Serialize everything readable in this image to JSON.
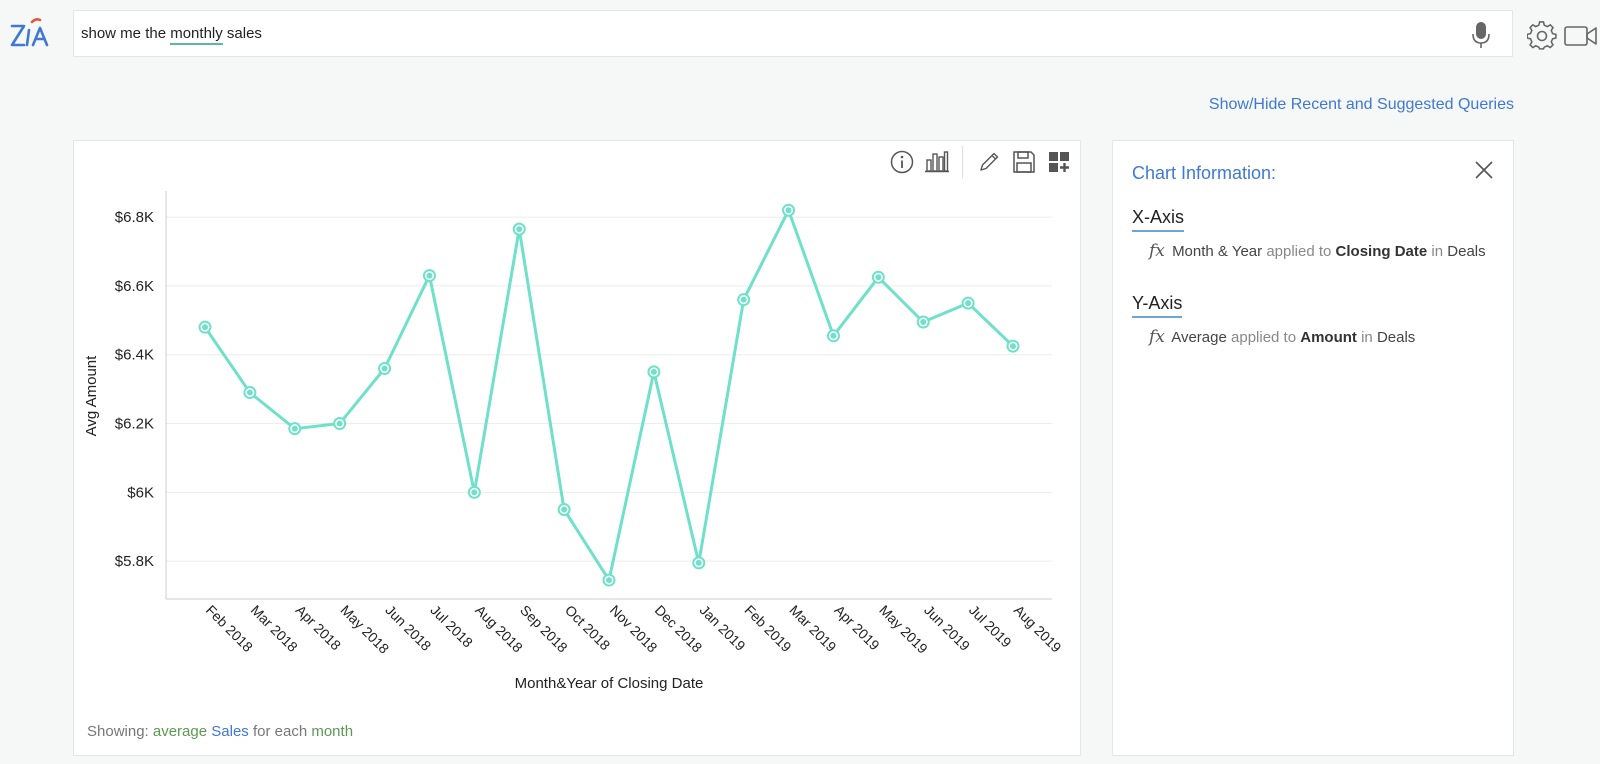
{
  "search": {
    "before": "show me the ",
    "highlight": "monthly",
    "after": " sales"
  },
  "links": {
    "toggle_queries": "Show/Hide Recent and Suggested Queries"
  },
  "icons": {
    "logo": "zia-logo",
    "mic": "microphone-icon",
    "settings": "gear-icon",
    "video": "video-camera-icon",
    "toolbar": [
      "info-icon",
      "bar-chart-icon",
      "pencil-icon",
      "save-icon",
      "add-widget-icon"
    ],
    "close": "close-icon"
  },
  "footer": {
    "prefix": "Showing: ",
    "w1": "average",
    "w2": "Sales",
    "w3": "for each",
    "w4": "month"
  },
  "info": {
    "title": "Chart Information:",
    "x_heading": "X-Axis",
    "x_fx": "fx",
    "x_part1": "Month & Year",
    "x_part2": "applied to",
    "x_part3": "Closing Date",
    "x_part4": "in",
    "x_part5": "Deals",
    "y_heading": "Y-Axis",
    "y_fx": "fx",
    "y_part1": "Average",
    "y_part2": "applied to",
    "y_part3": "Amount",
    "y_part4": "in",
    "y_part5": "Deals"
  },
  "colors": {
    "line": "#6fe0c9",
    "accent_blue": "#3f79d3",
    "accent_green": "#5b9a52",
    "grid": "#ececec"
  },
  "chart_data": {
    "type": "line",
    "categories": [
      "Feb 2018",
      "Mar 2018",
      "Apr 2018",
      "May 2018",
      "Jun 2018",
      "Jul 2018",
      "Aug 2018",
      "Sep 2018",
      "Oct 2018",
      "Nov 2018",
      "Dec 2018",
      "Jan 2019",
      "Feb 2019",
      "Mar 2019",
      "Apr 2019",
      "May 2019",
      "Jun 2019",
      "Jul 2019",
      "Aug 2019"
    ],
    "values": [
      6480,
      6290,
      6185,
      6200,
      6360,
      6630,
      6000,
      6765,
      5950,
      5745,
      6350,
      5795,
      6560,
      6820,
      6455,
      6625,
      6495,
      6550,
      6425
    ],
    "xlabel": "Month&Year of Closing Date",
    "ylabel": "Avg Amount",
    "yticks": [
      5800,
      6000,
      6200,
      6400,
      6600,
      6800
    ],
    "ytick_labels": [
      "$5.8K",
      "$6K",
      "$6.2K",
      "$6.4K",
      "$6.6K",
      "$6.8K"
    ],
    "ylim": [
      5690,
      6870
    ],
    "grid": true,
    "legend": "none"
  }
}
